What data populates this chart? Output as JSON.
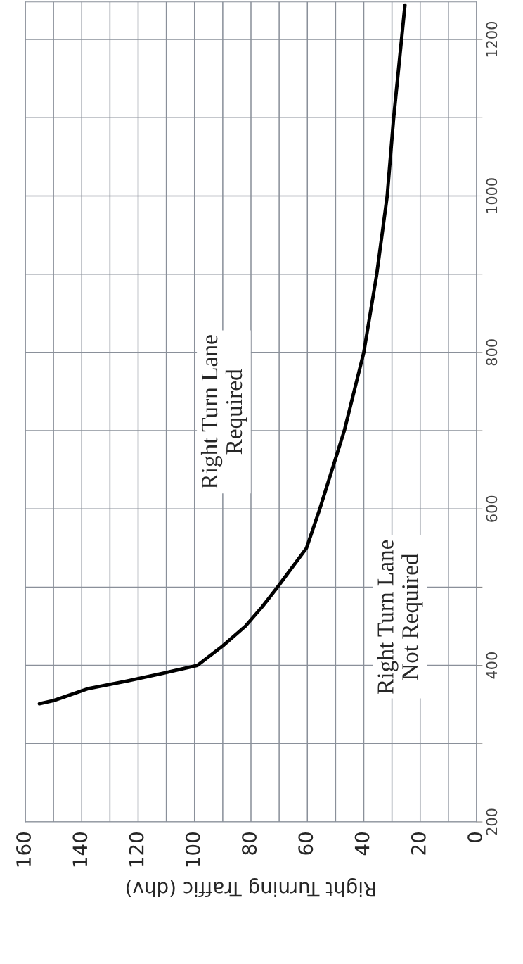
{
  "chart_data": {
    "type": "line",
    "xlabel": "Right Turning Traffic (dhv)",
    "x": [
      155,
      150,
      146,
      138,
      124,
      111,
      99,
      90,
      82,
      76,
      70.6,
      60.3,
      55.6,
      46.9,
      40,
      35.4,
      31.7,
      29.4,
      25.4
    ],
    "series": [
      {
        "color": "#000000",
        "values": [
          351,
          355,
          360,
          370,
          380,
          390,
          400,
          425,
          450,
          475,
          500,
          550,
          600,
          700,
          800,
          900,
          1000,
          1100,
          1244
        ]
      }
    ],
    "xlim": [
      160,
      0
    ],
    "xticks": [
      0,
      {
        "value": 10,
        "label": null
      },
      20,
      {
        "value": 30,
        "label": null
      },
      40,
      {
        "value": 50,
        "label": null
      },
      60,
      {
        "value": 70,
        "label": null
      },
      80,
      {
        "value": 90,
        "label": null
      },
      100,
      {
        "value": 110,
        "label": null
      },
      120,
      {
        "value": 130,
        "label": null
      },
      140,
      {
        "value": 150,
        "label": null
      },
      160
    ],
    "ylim": [
      200,
      1248
    ],
    "yticks": [
      200,
      {
        "value": 300,
        "label": null
      },
      400,
      {
        "value": 500,
        "label": null
      },
      600,
      {
        "value": 700,
        "label": null
      },
      800,
      {
        "value": 900,
        "label": null
      },
      1000,
      {
        "value": 1100,
        "label": null
      },
      1200
    ],
    "grid": true,
    "line_style": "solid",
    "annotations": [
      "Right Turn Lane\nRequired",
      "Right Turn Lane\nNot Required"
    ]
  }
}
